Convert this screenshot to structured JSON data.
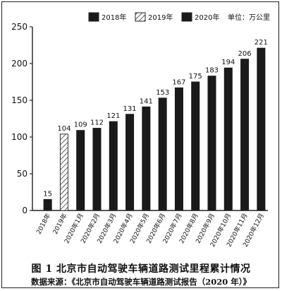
{
  "chart_data": {
    "type": "bar",
    "categories": [
      "2018年",
      "2019年",
      "2020年1月",
      "2020年2月",
      "2020年3月",
      "2020年4月",
      "2020年5月",
      "2020年6月",
      "2020年7月",
      "2020年8月",
      "2020年9月",
      "2020年10月",
      "2020年11月",
      "2020年12月"
    ],
    "values": [
      15,
      104,
      109,
      112,
      121,
      131,
      141,
      153,
      167,
      175,
      183,
      194,
      206,
      221
    ],
    "series_of": [
      "2018年",
      "2019年",
      "2020年",
      "2020年",
      "2020年",
      "2020年",
      "2020年",
      "2020年",
      "2020年",
      "2020年",
      "2020年",
      "2020年",
      "2020年",
      "2020年"
    ],
    "legend": [
      {
        "name": "2018年",
        "style": "solid"
      },
      {
        "name": "2019年",
        "style": "hatched"
      },
      {
        "name": "2020年",
        "style": "solid"
      }
    ],
    "legend_position": "top",
    "unit_label": "单位：万公里",
    "ylim": [
      0,
      250
    ],
    "yticks": [
      0,
      50,
      100,
      150,
      200,
      250
    ],
    "grid": false,
    "bar_color": "#1a1a1a",
    "hatch_color": "#333333"
  },
  "caption": {
    "title": "图 1 北京市自动驾驶车辆道路测试里程累计情况",
    "source": "数据来源：《北京市自动驾驶车辆道路测试报告（2020 年）》"
  }
}
